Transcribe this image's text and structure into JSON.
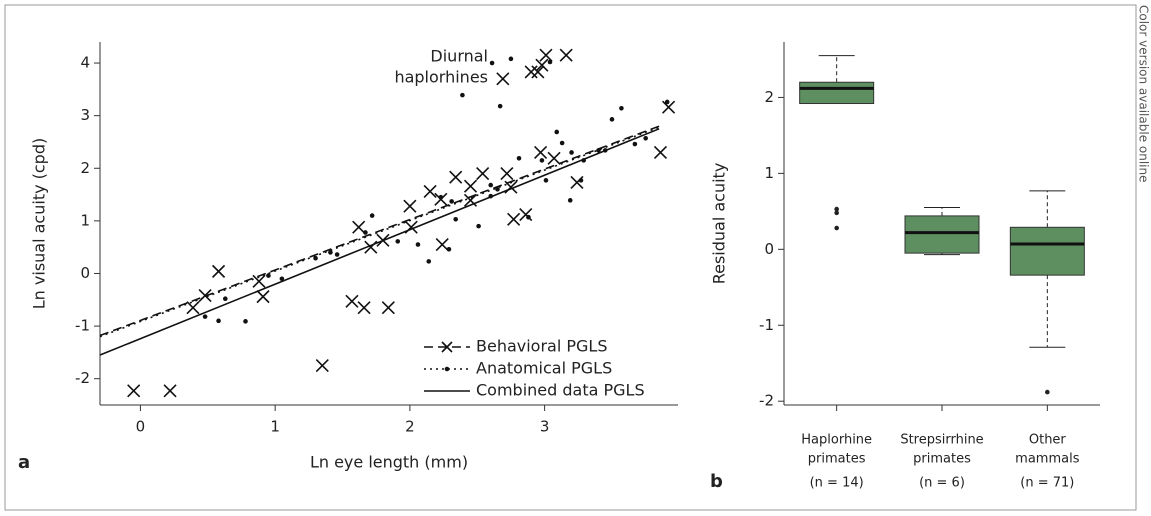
{
  "chart_data": [
    {
      "type": "scatter",
      "panel": "a",
      "xlabel": "Ln eye length (mm)",
      "ylabel": "Ln visual acuity (cpd)",
      "annotation": [
        "Diurnal",
        "haplorhines"
      ],
      "xlim": [
        -0.3,
        3.99
      ],
      "ylim": [
        -2.5,
        4.4
      ],
      "xticks": [
        0,
        1,
        2,
        3
      ],
      "yticks": [
        -2,
        -1,
        0,
        1,
        2,
        3,
        4
      ],
      "legend": "lower right",
      "color": "#111111",
      "series": [
        {
          "name": "Behavioral PGLS",
          "marker": "x",
          "dash": "9,5",
          "x": [
            -0.05,
            0.22,
            0.58,
            0.39,
            0.48,
            0.88,
            0.91,
            1.35,
            1.57,
            1.66,
            1.84,
            1.62,
            1.71,
            1.8,
            2.0,
            2.01,
            2.15,
            2.23,
            2.24,
            2.34,
            2.45,
            2.45,
            2.54,
            2.69,
            2.75,
            2.77,
            2.72,
            2.86,
            2.9,
            2.97,
            2.95,
            2.98,
            3.01,
            3.07,
            3.16,
            3.24,
            3.86,
            3.92
          ],
          "values": [
            -2.23,
            -2.23,
            0.04,
            -0.65,
            -0.42,
            -0.15,
            -0.44,
            -1.75,
            -0.53,
            -0.65,
            -0.65,
            0.88,
            0.5,
            0.63,
            1.28,
            0.88,
            1.56,
            1.41,
            0.55,
            1.83,
            1.39,
            1.66,
            1.9,
            3.7,
            1.64,
            1.03,
            1.9,
            1.12,
            3.83,
            2.3,
            3.83,
            3.96,
            4.15,
            2.19,
            4.15,
            1.73,
            2.3,
            3.16
          ],
          "fit": {
            "x": [
              -0.3,
              3.85
            ],
            "values": [
              -1.18,
              2.8
            ]
          }
        },
        {
          "name": "Anatomical PGLS",
          "marker": "dot",
          "dash": "2,4",
          "x": [
            0.48,
            0.58,
            0.63,
            0.78,
            0.95,
            1.05,
            1.3,
            1.41,
            1.46,
            1.67,
            1.72,
            1.91,
            2.06,
            2.14,
            2.23,
            2.31,
            2.34,
            2.29,
            2.39,
            2.51,
            2.6,
            2.61,
            2.67,
            2.75,
            2.81,
            2.88,
            2.6,
            2.65,
            2.98,
            3.01,
            3.04,
            3.09,
            3.13,
            3.19,
            3.2,
            3.27,
            3.29,
            3.4,
            3.45,
            3.5,
            3.57,
            3.67,
            3.75,
            3.91
          ],
          "values": [
            -0.82,
            -0.9,
            -0.48,
            -0.91,
            -0.04,
            -0.1,
            0.29,
            0.4,
            0.36,
            0.78,
            1.1,
            0.61,
            0.55,
            0.23,
            1.45,
            1.37,
            1.03,
            0.46,
            3.39,
            0.9,
            1.47,
            4.0,
            3.18,
            4.08,
            2.19,
            1.07,
            1.68,
            1.6,
            2.15,
            1.77,
            4.02,
            2.69,
            2.48,
            1.39,
            2.3,
            1.77,
            2.15,
            2.34,
            2.34,
            2.93,
            3.14,
            2.46,
            2.57,
            3.26
          ],
          "fit": {
            "x": [
              -0.3,
              3.85
            ],
            "values": [
              -1.2,
              2.78
            ]
          }
        },
        {
          "name": "Combined data PGLS",
          "dash": "none",
          "fit": {
            "x": [
              -0.3,
              3.85
            ],
            "values": [
              -1.55,
              2.75
            ]
          }
        }
      ]
    },
    {
      "type": "box",
      "panel": "b",
      "ylabel": "Residual acuity",
      "ylim": [
        -2.05,
        2.73
      ],
      "yticks": [
        -2,
        -1,
        0,
        1,
        2
      ],
      "color": "#5e8f60",
      "categories": [
        [
          "Haplorhine",
          "primates"
        ],
        [
          "Strepsirrhine",
          "primates"
        ],
        [
          "Other",
          "mammals"
        ]
      ],
      "n_labels": [
        "(n = 14)",
        "(n = 6)",
        "(n = 71)"
      ],
      "boxes": [
        {
          "min": 1.92,
          "q1": 1.92,
          "median": 2.12,
          "q3": 2.2,
          "max": 2.55,
          "outliers": [
            0.53,
            0.48,
            0.28
          ]
        },
        {
          "min": -0.07,
          "q1": -0.05,
          "median": 0.22,
          "q3": 0.44,
          "max": 0.55,
          "outliers": []
        },
        {
          "min": -1.29,
          "q1": -0.34,
          "median": 0.07,
          "q3": 0.29,
          "max": 0.77,
          "outliers": [
            -1.88
          ]
        }
      ]
    }
  ],
  "side_note": "Color version available online"
}
